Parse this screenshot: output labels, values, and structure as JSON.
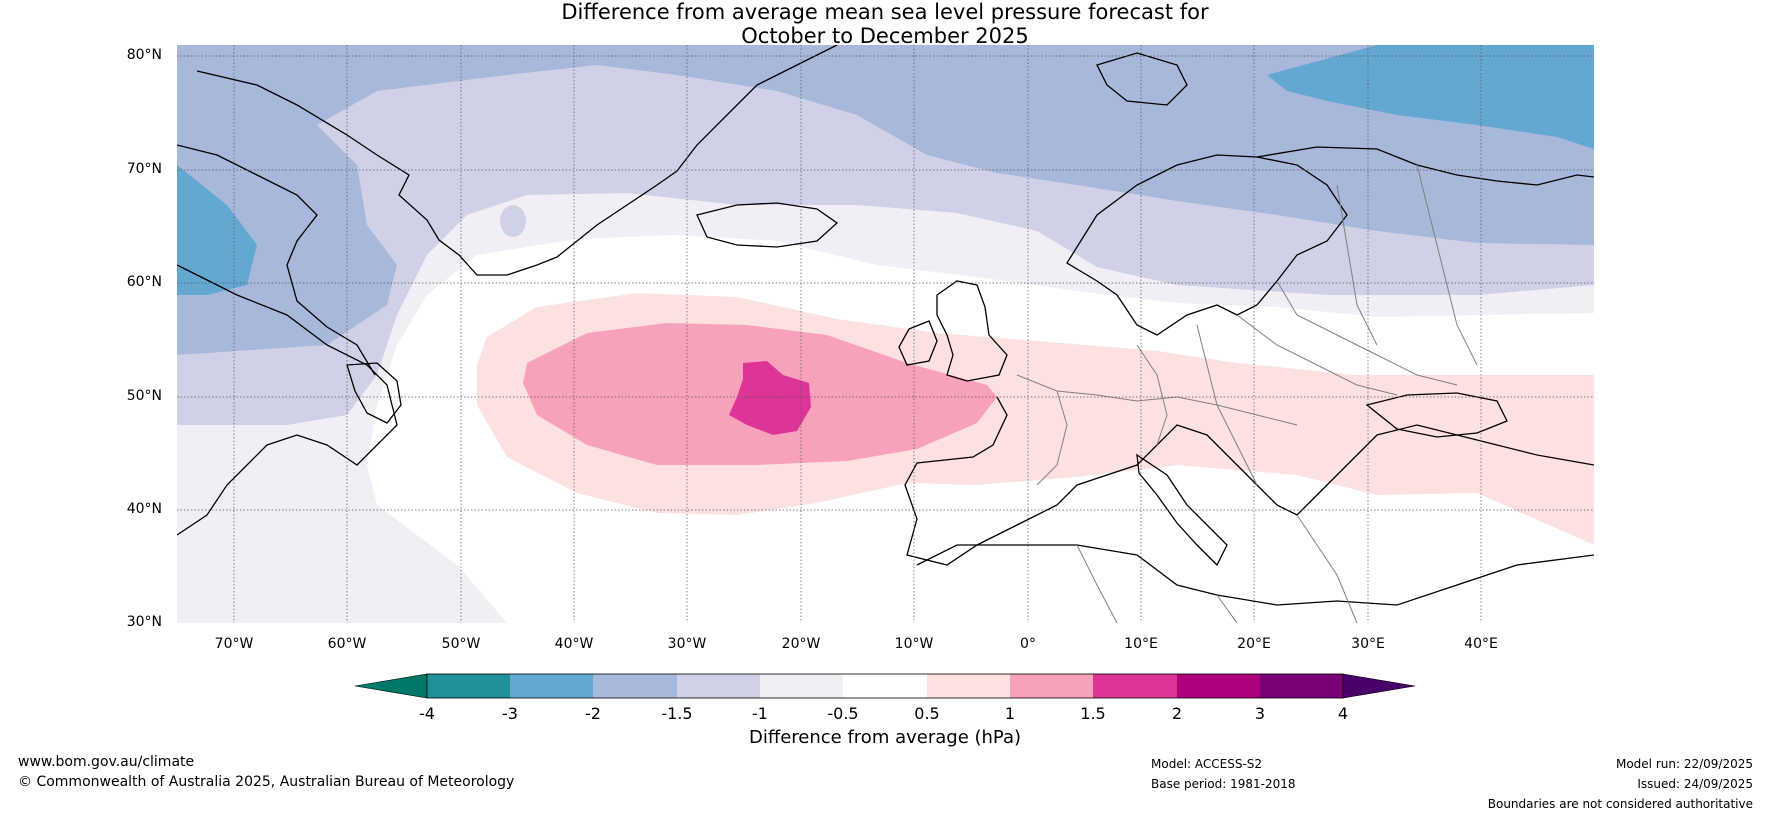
{
  "title": {
    "line1": "Difference from average mean sea level pressure forecast for",
    "line2": "October to December 2025"
  },
  "map": {
    "lat_labels": [
      "80°N",
      "70°N",
      "60°N",
      "50°N",
      "40°N",
      "30°N"
    ],
    "lon_labels": [
      "70°W",
      "60°W",
      "50°W",
      "40°W",
      "30°W",
      "20°W",
      "10°W",
      "0°",
      "10°E",
      "20°E",
      "30°E",
      "40°E"
    ],
    "colors": {
      "land_outline": "#000000",
      "border": "#808080",
      "grid": "#555555"
    }
  },
  "colorbar": {
    "label": "Difference from average (hPa)",
    "ticks": [
      "-4",
      "-3",
      "-2",
      "-1.5",
      "-1",
      "-0.5",
      "0.5",
      "1",
      "1.5",
      "2",
      "3",
      "4"
    ],
    "colors": [
      "#00796b",
      "#1e9199",
      "#63a8d1",
      "#a8b8da",
      "#d0d1e6",
      "#f2eef6",
      "#ffffff",
      "#fde0e0",
      "#f7a1bb",
      "#dd3497",
      "#ae017e",
      "#7a0177",
      "#49006a"
    ]
  },
  "footer": {
    "url": "www.bom.gov.au/climate",
    "copyright": "© Commonwealth of Australia 2025, Australian Bureau of Meteorology",
    "model": "Model: ACCESS-S2",
    "base_period": "Base period: 1981-2018",
    "model_run": "Model run: 22/09/2025",
    "issued": "Issued: 24/09/2025",
    "disclaimer": "Boundaries are not considered authoritative"
  }
}
